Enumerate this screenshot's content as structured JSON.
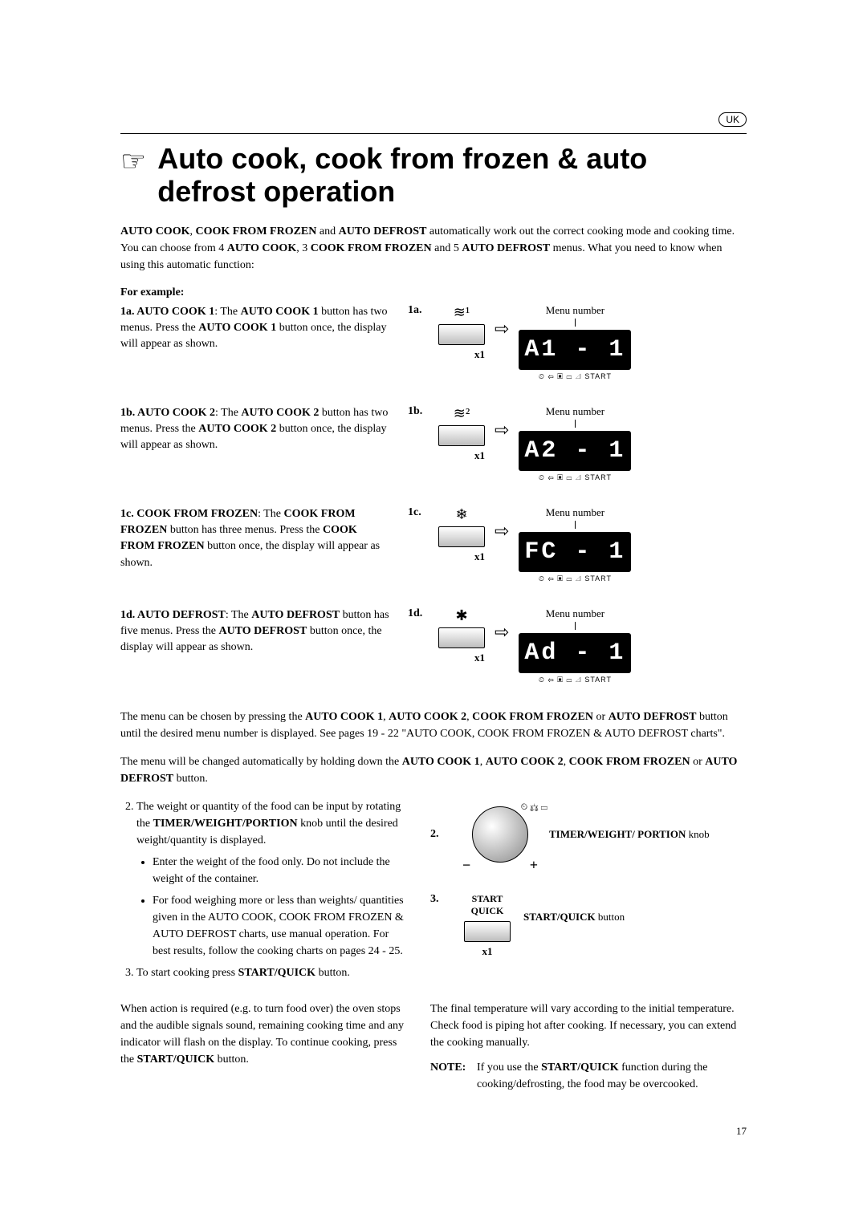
{
  "country": "UK",
  "title": "Auto cook, cook from frozen & auto defrost operation",
  "intro_parts": {
    "a": "AUTO COOK",
    "b": "COOK FROM FROZEN",
    "c": "AUTO DEFROST",
    "tail1": " automatically work out the correct cooking mode and cooking time. You can choose from 4 ",
    "d": "AUTO COOK",
    "tail2": ", 3 ",
    "e": "COOK FROM FROZEN",
    "tail3": " and 5 ",
    "f": "AUTO DEFROST",
    "tail4": " menus. What you need to know when using this automatic function:"
  },
  "for_example": "For example:",
  "examples": [
    {
      "step": "1a.",
      "lead": "1a. AUTO COOK 1",
      "body": ": The AUTO COOK 1 button has two menus. Press the AUTO COOK 1 button once, the display will appear as shown.",
      "icon": "≋¹",
      "x": "x1",
      "menu": "Menu number",
      "lcd": "A1 - 1"
    },
    {
      "step": "1b.",
      "lead": "1b. AUTO COOK 2",
      "body": ": The AUTO COOK 2 button has two menus. Press the AUTO COOK 2 button once, the display will appear as shown.",
      "icon": "≋²",
      "x": "x1",
      "menu": "Menu number",
      "lcd": "A2 - 1"
    },
    {
      "step": "1c.",
      "lead": "1c. COOK FROM FROZEN",
      "body": ": The COOK FROM FROZEN button has three menus. Press the COOK FROM FROZEN button once, the display will appear as shown.",
      "icon": "❄",
      "x": "x1",
      "menu": "Menu number",
      "lcd": "FC - 1"
    },
    {
      "step": "1d.",
      "lead": "1d. AUTO DEFROST",
      "body": ": The AUTO DEFROST button has five menus. Press the AUTO DEFROST button once, the display will appear as shown.",
      "icon": "✱",
      "x": "x1",
      "menu": "Menu number",
      "lcd": "Ad - 1"
    }
  ],
  "midpara1_pre": "The menu can be chosen by pressing the ",
  "midpara1_b1": "AUTO COOK 1",
  "midpara1_b2": "AUTO COOK 2",
  "midpara1_b3": "COOK FROM FROZEN",
  "midpara1_b4": "AUTO DEFROST",
  "midpara1_tail": " button until the desired menu number is displayed.  See pages 19 - 22 \"AUTO COOK, COOK FROM FROZEN & AUTO DEFROST charts\".",
  "midpara2_pre": "The menu will be changed automatically by holding down the ",
  "midpara2_tail": " button.",
  "or": " or ",
  "comma": ", ",
  "step2": {
    "num": "2.",
    "text_a": "The weight or quantity of the food can be input by rotating the ",
    "text_b": "TIMER/WEIGHT/PORTION",
    "text_c": " knob until the desired weight/quantity is displayed.",
    "bullet1": "Enter the weight of the food only.  Do not include the weight of the container.",
    "bullet2": "For food weighing more or less than weights/ quantities given in the AUTO COOK, COOK FROM FROZEN & AUTO DEFROST charts, use manual operation. For best results, follow the cooking charts on pages 24 - 25."
  },
  "step3": {
    "num": "3.",
    "text_a": "To start cooking press ",
    "text_b": "START/QUICK",
    "text_c": " button."
  },
  "knob": {
    "label_num": "2.",
    "minus": "−",
    "plus": "+",
    "icons": "⏲\n⚖\n▭",
    "label": "TIMER/WEIGHT/ PORTION",
    "label_tail": " knob"
  },
  "startquick": {
    "label_num": "3.",
    "btn_line1": "START",
    "btn_line2": "QUICK",
    "x": "x1",
    "caption": "START/QUICK",
    "caption_tail": " button"
  },
  "closing_left": {
    "a": "When action is required (e.g. to turn food over) the oven stops and the audible signals sound, remaining cooking time and any indicator will flash on the display.  To continue cooking, press the ",
    "b": "START/QUICK",
    "c": " button."
  },
  "closing_right": "The final temperature  will vary according to the initial temperature. Check food is piping hot after cooking.  If necessary, you can extend the cooking manually.",
  "note": {
    "label": "NOTE:",
    "a": "If you use the ",
    "b": "START/QUICK",
    "c": " function during the cooking/defrosting, the food may be overcooked."
  },
  "lcd_sub": "⏲ ⇦ ▣ ▭ ◿ START",
  "arrow": "⇨",
  "page": "17"
}
